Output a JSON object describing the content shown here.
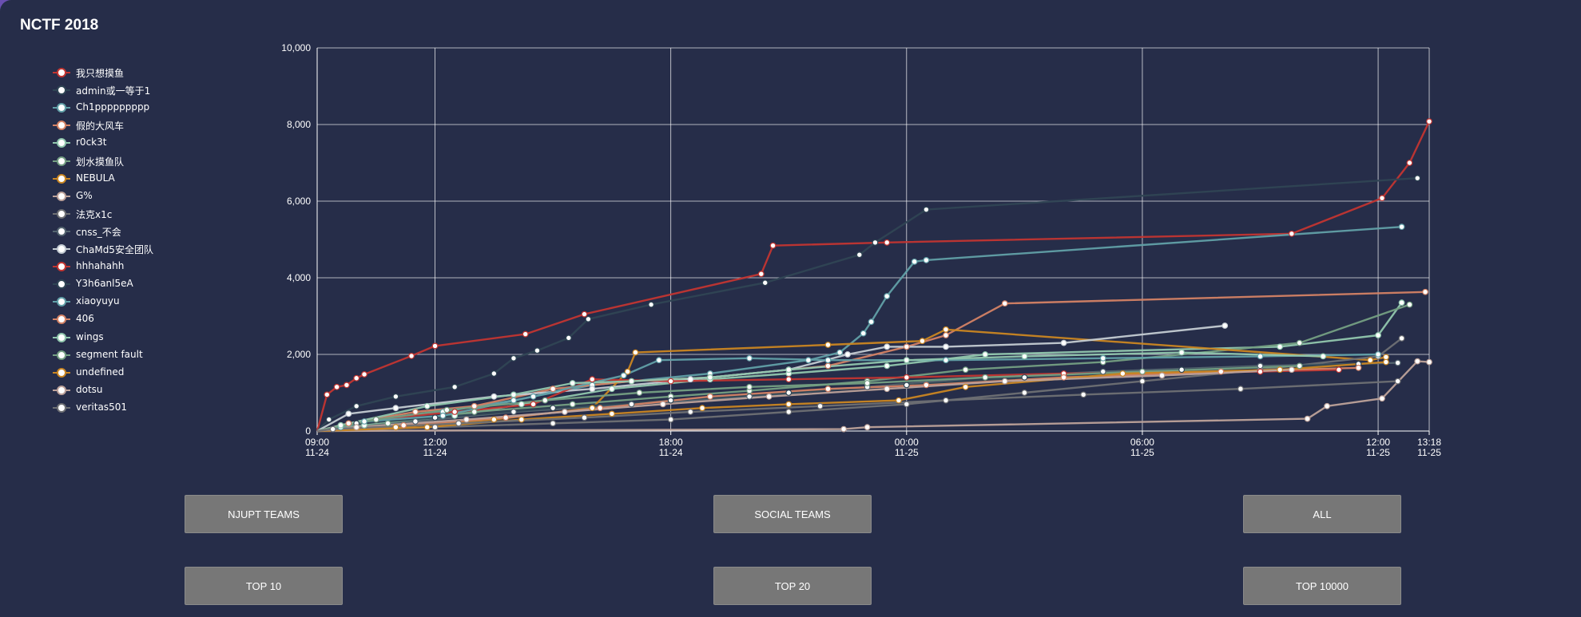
{
  "app": {
    "title": "NCTF 2018"
  },
  "legend": [
    {
      "name": "我只想摸鱼",
      "color": "#c23531"
    },
    {
      "name": "admin或一等于1",
      "color": "#2f4554"
    },
    {
      "name": "Ch1ppppppppp",
      "color": "#61a0a8"
    },
    {
      "name": "假的大风车",
      "color": "#d48265"
    },
    {
      "name": "r0ck3t",
      "color": "#91c7ae"
    },
    {
      "name": "划水摸鱼队",
      "color": "#749f83"
    },
    {
      "name": "NEBULA",
      "color": "#ca8622"
    },
    {
      "name": "G%",
      "color": "#bda29a"
    },
    {
      "name": "法克x1c",
      "color": "#6e7074"
    },
    {
      "name": "cnss_不会",
      "color": "#546570"
    },
    {
      "name": "ChaMd5安全团队",
      "color": "#c4ccd3"
    },
    {
      "name": "hhhahahh",
      "color": "#c23531"
    },
    {
      "name": "Y3h6anl5eA",
      "color": "#2f4554"
    },
    {
      "name": "xiaoyuyu",
      "color": "#61a0a8"
    },
    {
      "name": "406",
      "color": "#d48265"
    },
    {
      "name": "wings",
      "color": "#91c7ae"
    },
    {
      "name": "segment fault",
      "color": "#749f83"
    },
    {
      "name": "undefined",
      "color": "#ca8622"
    },
    {
      "name": "dotsu",
      "color": "#bda29a"
    },
    {
      "name": "veritas501",
      "color": "#6e7074"
    }
  ],
  "buttons": {
    "njupt": "NJUPT TEAMS",
    "social": "SOCIAL TEAMS",
    "all": "ALL",
    "top10": "TOP 10",
    "top20": "TOP 20",
    "top10000": "TOP 10000"
  },
  "chart_data": {
    "type": "line",
    "title": "",
    "ylim": [
      0,
      10000
    ],
    "y_ticks": [
      "0",
      "2,000",
      "4,000",
      "6,000",
      "8,000",
      "10,000"
    ],
    "y_tick_values": [
      0,
      2000,
      4000,
      6000,
      8000,
      10000
    ],
    "x_range_hours": [
      0,
      28.3
    ],
    "x_ticks": [
      {
        "h": 0,
        "time": "09:00",
        "date": "11-24"
      },
      {
        "h": 3,
        "time": "12:00",
        "date": "11-24"
      },
      {
        "h": 9,
        "time": "18:00",
        "date": "11-24"
      },
      {
        "h": 15,
        "time": "00:00",
        "date": "11-25"
      },
      {
        "h": 21,
        "time": "06:00",
        "date": "11-25"
      },
      {
        "h": 27,
        "time": "12:00",
        "date": "11-25"
      },
      {
        "h": 28.3,
        "time": "13:18",
        "date": "11-25"
      }
    ],
    "grid": true,
    "series": [
      {
        "name": "我只想摸鱼",
        "color": "#c23531",
        "points": [
          [
            0,
            0
          ],
          [
            0.25,
            950
          ],
          [
            0.5,
            1150
          ],
          [
            0.75,
            1200
          ],
          [
            1.0,
            1380
          ],
          [
            1.2,
            1480
          ],
          [
            2.4,
            1960
          ],
          [
            3.0,
            2220
          ],
          [
            5.3,
            2530
          ],
          [
            6.8,
            3050
          ],
          [
            11.3,
            4100
          ],
          [
            11.6,
            4840
          ],
          [
            14.5,
            4920
          ],
          [
            24.8,
            5150
          ],
          [
            27.1,
            6080
          ],
          [
            27.8,
            7000
          ],
          [
            28.3,
            8080
          ]
        ]
      },
      {
        "name": "admin或一等于1",
        "color": "#2f4554",
        "points": [
          [
            0,
            0
          ],
          [
            0.3,
            300
          ],
          [
            1.0,
            650
          ],
          [
            2.0,
            900
          ],
          [
            3.5,
            1150
          ],
          [
            4.5,
            1500
          ],
          [
            5.0,
            1900
          ],
          [
            5.6,
            2100
          ],
          [
            6.4,
            2430
          ],
          [
            6.9,
            2920
          ],
          [
            8.5,
            3300
          ],
          [
            11.4,
            3870
          ],
          [
            13.8,
            4600
          ],
          [
            14.2,
            4920
          ],
          [
            15.5,
            5780
          ],
          [
            28,
            6600
          ]
        ]
      },
      {
        "name": "Ch1ppppppppp",
        "color": "#61a0a8",
        "points": [
          [
            0,
            0
          ],
          [
            0.6,
            100
          ],
          [
            1.5,
            300
          ],
          [
            3.2,
            500
          ],
          [
            5.0,
            800
          ],
          [
            7.0,
            1200
          ],
          [
            10.0,
            1500
          ],
          [
            12.5,
            1850
          ],
          [
            13.3,
            2050
          ],
          [
            13.9,
            2550
          ],
          [
            14.1,
            2850
          ],
          [
            14.5,
            3520
          ],
          [
            15.2,
            4420
          ],
          [
            15.5,
            4460
          ],
          [
            27.6,
            5330
          ]
        ]
      },
      {
        "name": "假的大风车",
        "color": "#d48265",
        "points": [
          [
            0,
            0
          ],
          [
            0.8,
            200
          ],
          [
            2.5,
            500
          ],
          [
            4.0,
            650
          ],
          [
            6.0,
            1100
          ],
          [
            8.0,
            1300
          ],
          [
            10.0,
            1400
          ],
          [
            13.0,
            1700
          ],
          [
            15.0,
            2200
          ],
          [
            16.0,
            2500
          ],
          [
            17.5,
            3330
          ],
          [
            28.2,
            3630
          ]
        ]
      },
      {
        "name": "r0ck3t",
        "color": "#91c7ae",
        "points": [
          [
            0,
            0
          ],
          [
            1.2,
            150
          ],
          [
            3.5,
            400
          ],
          [
            5.2,
            700
          ],
          [
            7.5,
            1100
          ],
          [
            10.0,
            1350
          ],
          [
            12.0,
            1500
          ],
          [
            14.5,
            1700
          ],
          [
            17.0,
            2000
          ],
          [
            24.5,
            2200
          ],
          [
            27.0,
            2500
          ],
          [
            27.6,
            3350
          ]
        ]
      },
      {
        "name": "划水摸鱼队",
        "color": "#749f83",
        "points": [
          [
            0,
            0
          ],
          [
            1.8,
            200
          ],
          [
            4.0,
            500
          ],
          [
            6.5,
            700
          ],
          [
            9.0,
            900
          ],
          [
            11.0,
            1050
          ],
          [
            14.0,
            1300
          ],
          [
            16.5,
            1600
          ],
          [
            20.0,
            1800
          ],
          [
            25.0,
            2300
          ],
          [
            27.8,
            3300
          ]
        ]
      },
      {
        "name": "NEBULA",
        "color": "#ca8622",
        "points": [
          [
            0,
            0
          ],
          [
            2.0,
            100
          ],
          [
            4.5,
            300
          ],
          [
            7.0,
            600
          ],
          [
            7.9,
            1550
          ],
          [
            8.1,
            2050
          ],
          [
            13.0,
            2250
          ],
          [
            15.4,
            2350
          ],
          [
            16.0,
            2650
          ],
          [
            26.8,
            1850
          ],
          [
            27.2,
            1930
          ]
        ]
      },
      {
        "name": "G%",
        "color": "#bda29a",
        "points": [
          [
            0,
            0
          ],
          [
            13.4,
            50
          ],
          [
            14.0,
            100
          ],
          [
            25.2,
            320
          ],
          [
            25.7,
            650
          ],
          [
            27.1,
            850
          ],
          [
            28.0,
            1820
          ],
          [
            28.3,
            1800
          ]
        ]
      },
      {
        "name": "法克x1c",
        "color": "#6e7074",
        "points": [
          [
            0,
            0
          ],
          [
            3.0,
            100
          ],
          [
            6.0,
            200
          ],
          [
            9.0,
            300
          ],
          [
            12.0,
            500
          ],
          [
            15.0,
            700
          ],
          [
            18.0,
            1000
          ],
          [
            21.0,
            1300
          ],
          [
            24.0,
            1600
          ],
          [
            27.0,
            1950
          ],
          [
            27.6,
            2420
          ]
        ]
      },
      {
        "name": "cnss_不会",
        "color": "#546570",
        "points": [
          [
            0,
            0
          ],
          [
            2.5,
            250
          ],
          [
            5.0,
            500
          ],
          [
            8.0,
            700
          ],
          [
            11.0,
            900
          ],
          [
            14.0,
            1150
          ],
          [
            17.0,
            1400
          ],
          [
            20.0,
            1550
          ],
          [
            24.0,
            1700
          ],
          [
            27.5,
            1780
          ]
        ]
      },
      {
        "name": "ChaMd5安全团队",
        "color": "#c4ccd3",
        "points": [
          [
            0,
            0
          ],
          [
            0.8,
            450
          ],
          [
            2.0,
            600
          ],
          [
            4.5,
            900
          ],
          [
            7.0,
            1100
          ],
          [
            9.5,
            1350
          ],
          [
            12.0,
            1600
          ],
          [
            13.5,
            2000
          ],
          [
            14.5,
            2200
          ],
          [
            16.0,
            2200
          ],
          [
            19.0,
            2300
          ],
          [
            23.1,
            2750
          ]
        ]
      },
      {
        "name": "hhhahahh",
        "color": "#c23531",
        "points": [
          [
            0,
            0
          ],
          [
            1.5,
            300
          ],
          [
            3.5,
            500
          ],
          [
            5.5,
            700
          ],
          [
            7.0,
            1350
          ],
          [
            9.0,
            1300
          ],
          [
            12.0,
            1350
          ],
          [
            15.0,
            1400
          ],
          [
            19.0,
            1500
          ],
          [
            24.0,
            1550
          ],
          [
            26.0,
            1600
          ]
        ]
      },
      {
        "name": "Y3h6anl5eA",
        "color": "#2f4554",
        "points": [
          [
            0,
            0
          ],
          [
            1.0,
            200
          ],
          [
            3.0,
            350
          ],
          [
            6.0,
            600
          ],
          [
            9.0,
            800
          ],
          [
            12.0,
            1000
          ],
          [
            15.0,
            1200
          ],
          [
            18.0,
            1400
          ],
          [
            22.0,
            1600
          ],
          [
            26.5,
            1750
          ]
        ]
      },
      {
        "name": "xiaoyuyu",
        "color": "#61a0a8",
        "points": [
          [
            0,
            0
          ],
          [
            1.2,
            250
          ],
          [
            3.2,
            400
          ],
          [
            5.5,
            900
          ],
          [
            7.8,
            1450
          ],
          [
            8.7,
            1850
          ],
          [
            11.0,
            1900
          ],
          [
            13.0,
            1850
          ],
          [
            16.0,
            1850
          ],
          [
            20.0,
            1900
          ],
          [
            24.0,
            1950
          ],
          [
            27.0,
            2000
          ]
        ]
      },
      {
        "name": "406",
        "color": "#d48265",
        "points": [
          [
            0,
            0
          ],
          [
            2.2,
            150
          ],
          [
            4.8,
            350
          ],
          [
            7.2,
            600
          ],
          [
            10.0,
            900
          ],
          [
            13.0,
            1100
          ],
          [
            15.5,
            1200
          ],
          [
            19.0,
            1400
          ],
          [
            23.0,
            1550
          ],
          [
            26.5,
            1650
          ]
        ]
      },
      {
        "name": "wings",
        "color": "#91c7ae",
        "points": [
          [
            0,
            0
          ],
          [
            0.6,
            150
          ],
          [
            2.8,
            650
          ],
          [
            5.0,
            950
          ],
          [
            6.5,
            1250
          ],
          [
            8.0,
            1300
          ],
          [
            10.0,
            1400
          ],
          [
            12.0,
            1600
          ],
          [
            15.0,
            1850
          ],
          [
            18.0,
            1950
          ],
          [
            22.0,
            2050
          ],
          [
            25.6,
            1950
          ]
        ]
      },
      {
        "name": "segment fault",
        "color": "#749f83",
        "points": [
          [
            0,
            0
          ],
          [
            1.5,
            300
          ],
          [
            3.3,
            550
          ],
          [
            5.8,
            800
          ],
          [
            8.2,
            1000
          ],
          [
            11.0,
            1150
          ],
          [
            14.0,
            1250
          ],
          [
            17.0,
            1400
          ],
          [
            21.0,
            1550
          ],
          [
            25.0,
            1700
          ]
        ]
      },
      {
        "name": "undefined",
        "color": "#ca8622",
        "points": [
          [
            0,
            0
          ],
          [
            2.8,
            100
          ],
          [
            5.2,
            300
          ],
          [
            7.5,
            450
          ],
          [
            9.8,
            600
          ],
          [
            12.0,
            700
          ],
          [
            14.8,
            800
          ],
          [
            16.5,
            1150
          ],
          [
            20.5,
            1500
          ],
          [
            24.5,
            1600
          ],
          [
            27.2,
            1800
          ]
        ]
      },
      {
        "name": "dotsu",
        "color": "#bda29a",
        "points": [
          [
            0,
            0
          ],
          [
            1.0,
            100
          ],
          [
            3.8,
            300
          ],
          [
            6.3,
            500
          ],
          [
            8.8,
            700
          ],
          [
            11.5,
            900
          ],
          [
            14.5,
            1100
          ],
          [
            17.5,
            1300
          ],
          [
            21.5,
            1450
          ],
          [
            24.8,
            1600
          ]
        ]
      },
      {
        "name": "veritas501",
        "color": "#6e7074",
        "points": [
          [
            0,
            0
          ],
          [
            0.4,
            50
          ],
          [
            3.6,
            200
          ],
          [
            6.8,
            350
          ],
          [
            9.5,
            500
          ],
          [
            12.8,
            650
          ],
          [
            16.0,
            800
          ],
          [
            19.5,
            950
          ],
          [
            23.5,
            1100
          ],
          [
            27.5,
            1300
          ]
        ]
      }
    ]
  }
}
